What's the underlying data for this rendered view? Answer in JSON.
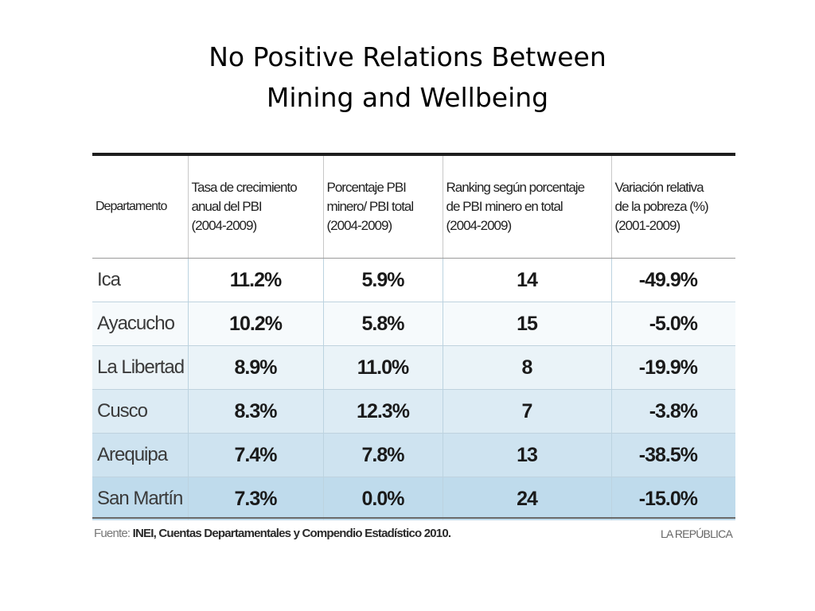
{
  "slide": {
    "title_line1": "No Positive Relations Between",
    "title_line2": "Mining and Wellbeing"
  },
  "table": {
    "headers": [
      [
        "Departamento"
      ],
      [
        "Tasa de crecimiento",
        "anual del PBI",
        "(2004-2009)"
      ],
      [
        "Porcentaje PBI",
        "minero/ PBI total",
        "(2004-2009)"
      ],
      [
        "Ranking según porcentaje",
        "de PBI minero en total",
        "(2004-2009)"
      ],
      [
        "Variación relativa",
        "de la pobreza (%)",
        "(2001-2009)"
      ]
    ],
    "rows": [
      [
        "Ica",
        "11.2%",
        "5.9%",
        "14",
        "-49.9%"
      ],
      [
        "Ayacucho",
        "10.2%",
        "5.8%",
        "15",
        "-5.0%"
      ],
      [
        "La Libertad",
        "8.9%",
        "11.0%",
        "8",
        "-19.9%"
      ],
      [
        "Cusco",
        "8.3%",
        "12.3%",
        "7",
        "-3.8%"
      ],
      [
        "Arequipa",
        "7.4%",
        "7.8%",
        "13",
        "-38.5%"
      ],
      [
        "San Martín",
        "7.3%",
        "0.0%",
        "24",
        "-15.0%"
      ]
    ],
    "source_label": "Fuente:",
    "source_text": "INEI, Cuentas Departamentales y Compendio Estadístico 2010.",
    "publisher": "LA REPÚBLICA"
  },
  "colors": {
    "row_tint_bottom": "#bfdbec",
    "row_tint_top": "#ffffff",
    "top_rule": "#1e1e1e"
  }
}
